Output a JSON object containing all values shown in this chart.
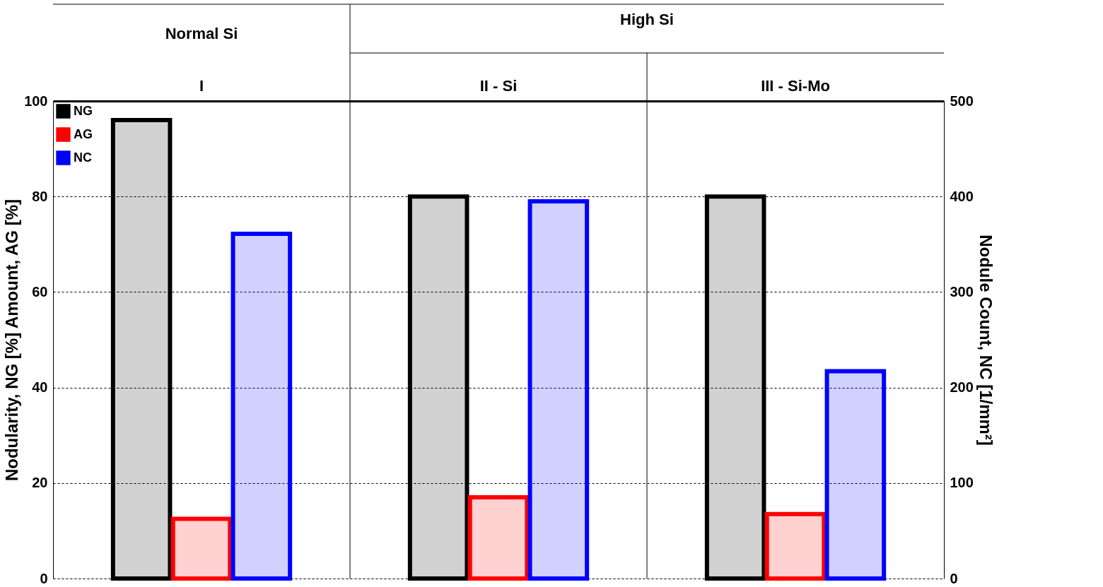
{
  "chart_data": {
    "type": "bar",
    "categories": [
      "I",
      "II - Si",
      "III - Si-Mo"
    ],
    "annotations": [
      "Normal Si",
      "High Si"
    ],
    "ylabel": "Nodularity, NG [%] Amount, AG [%]",
    "y2label": "Nodule Count, NC [1/mm²]",
    "ylim": [
      0,
      100
    ],
    "yticks": [
      0,
      20,
      40,
      60,
      80,
      100
    ],
    "y2lim": [
      0,
      500
    ],
    "y2ticks": [
      0,
      100,
      200,
      300,
      400,
      500
    ],
    "grid": "y",
    "legend": "top left",
    "series": [
      {
        "name": "NG",
        "color": "#000000",
        "values": [
          96,
          80,
          80
        ]
      },
      {
        "name": "AG",
        "color": "#ff0000",
        "values": [
          12.5,
          17,
          13.5
        ]
      },
      {
        "name": "NC",
        "color": "#0000ff",
        "values": [
          361,
          395,
          217
        ],
        "axis": "y2"
      }
    ]
  }
}
